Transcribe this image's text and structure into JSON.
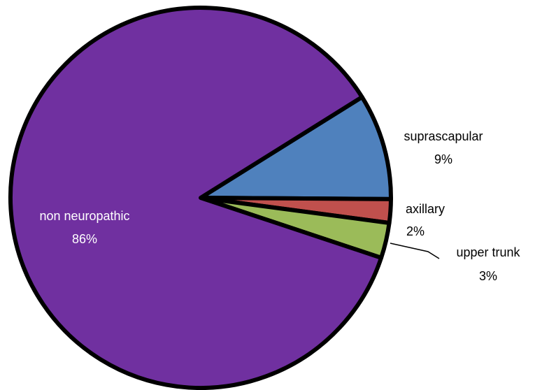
{
  "chart_data": {
    "type": "pie",
    "title": "",
    "slices": [
      {
        "label": "suprascapular",
        "value_label": "9%",
        "value": 9,
        "color": "#4F81BD"
      },
      {
        "label": "axillary",
        "value_label": "2%",
        "value": 2,
        "color": "#C0504D"
      },
      {
        "label": "upper trunk",
        "value_label": "3%",
        "value": 3,
        "color": "#9BBB59"
      },
      {
        "label": "non neuropathic",
        "value_label": "86%",
        "value": 86,
        "color": "#7030A0"
      }
    ],
    "outline_color": "#000000"
  }
}
